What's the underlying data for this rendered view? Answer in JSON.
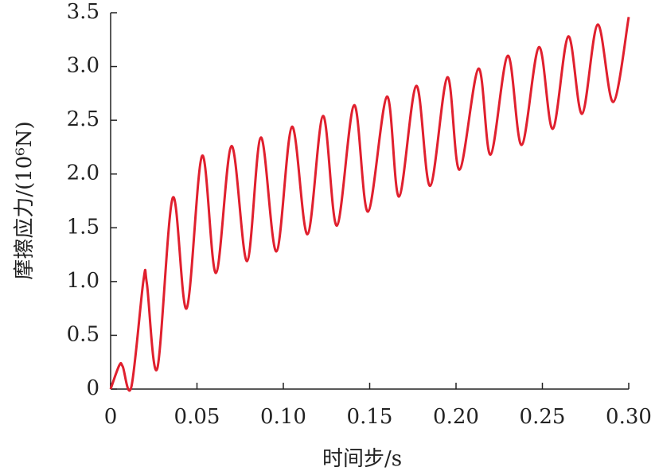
{
  "chart_data": {
    "type": "line",
    "xlabel": "时间步/s",
    "ylabel": "摩擦应力/(10⁶N)",
    "x": [
      0,
      0.005,
      0.007,
      0.012,
      0.019,
      0.021,
      0.027,
      0.036,
      0.044,
      0.053,
      0.061,
      0.07,
      0.079,
      0.087,
      0.096,
      0.105,
      0.114,
      0.123,
      0.131,
      0.141,
      0.149,
      0.16,
      0.167,
      0.177,
      0.185,
      0.195,
      0.202,
      0.213,
      0.22,
      0.23,
      0.238,
      0.248,
      0.256,
      0.265,
      0.273,
      0.282,
      0.291,
      0.3
    ],
    "series": [
      {
        "name": "摩擦应力",
        "color": "#e0202e",
        "values": [
          0,
          0.22,
          0.21,
          0.02,
          1.01,
          0.98,
          0.19,
          1.78,
          0.75,
          2.17,
          1.08,
          2.26,
          1.19,
          2.34,
          1.28,
          2.44,
          1.44,
          2.54,
          1.52,
          2.64,
          1.65,
          2.72,
          1.79,
          2.82,
          1.89,
          2.9,
          2.04,
          2.98,
          2.18,
          3.1,
          2.27,
          3.18,
          2.42,
          3.28,
          2.56,
          3.39,
          2.67,
          3.46
        ]
      }
    ],
    "xlim": [
      0,
      0.3
    ],
    "xticks": [
      0,
      0.05,
      {
        "value": 0.1,
        "label": "0.10"
      },
      0.15,
      {
        "value": 0.2,
        "label": "0.20"
      },
      0.25,
      {
        "value": 0.3,
        "label": "0.30"
      }
    ],
    "ylim": [
      0,
      3.5
    ],
    "yticks": [
      0,
      0.5,
      {
        "value": 1,
        "label": "1.0"
      },
      1.5,
      {
        "value": 2,
        "label": "2.0"
      },
      2.5,
      {
        "value": 3,
        "label": "3.0"
      },
      3.5
    ],
    "grid": false
  }
}
